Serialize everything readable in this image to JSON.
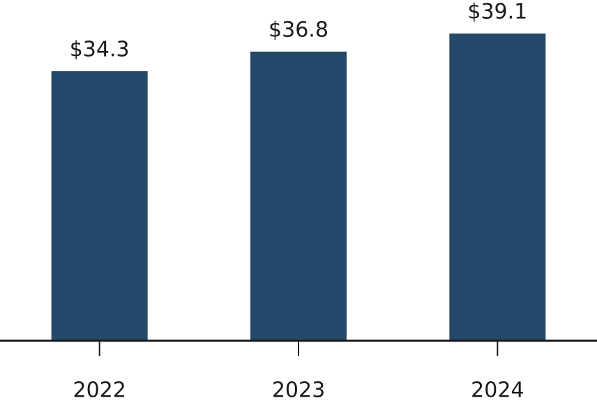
{
  "chart_data": {
    "type": "bar",
    "categories": [
      "2022",
      "2023",
      "2024"
    ],
    "values": [
      34.3,
      36.8,
      39.1
    ],
    "value_labels": [
      "$34.3",
      "$36.8",
      "$39.1"
    ],
    "color": "#25496a"
  }
}
